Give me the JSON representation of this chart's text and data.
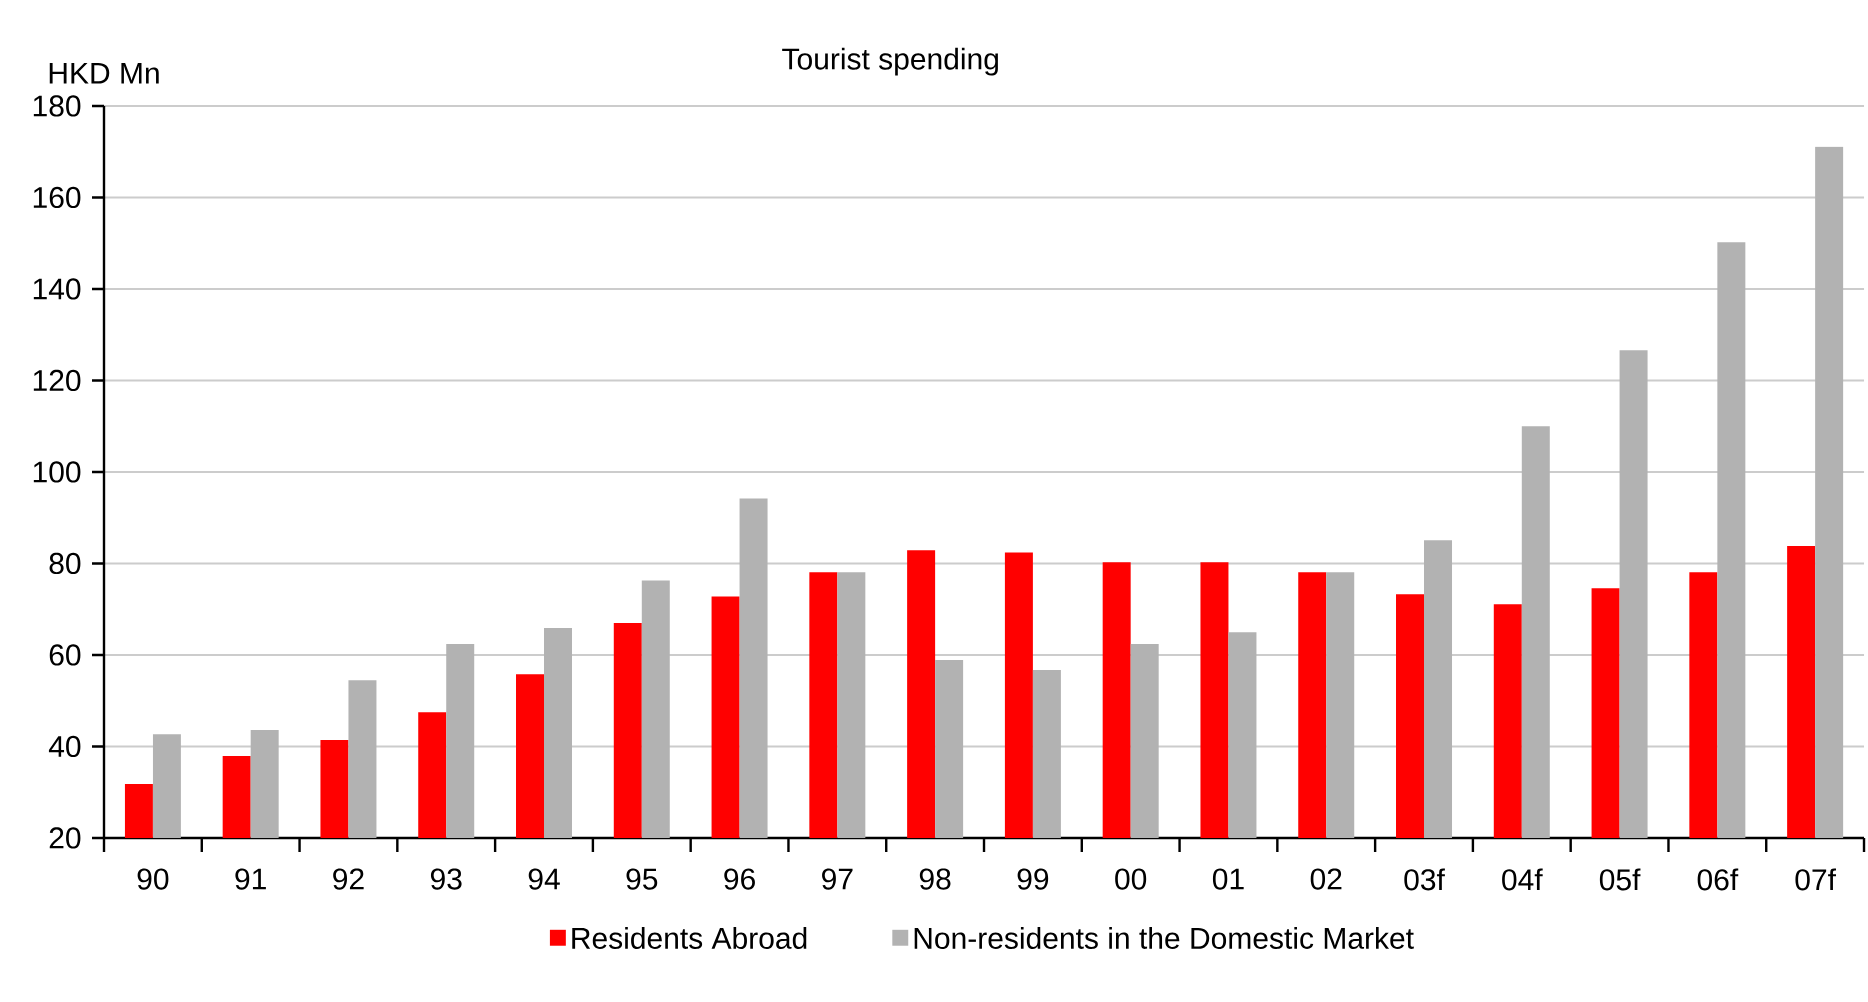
{
  "chart_data": {
    "type": "bar",
    "title": "Tourist spending",
    "ylabel": "HKD Mn",
    "categories": [
      "90",
      "91",
      "92",
      "93",
      "94",
      "95",
      "96",
      "97",
      "98",
      "99",
      "00",
      "01",
      "02",
      "03f",
      "04f",
      "05f",
      "06f",
      "07f"
    ],
    "series": [
      {
        "name": "Residents Abroad",
        "color": "#ff0000",
        "values": [
          31.8,
          37.9,
          41.4,
          47.5,
          55.8,
          67,
          72.8,
          78.1,
          82.9,
          82.4,
          80.3,
          80.3,
          78.1,
          73.3,
          71.1,
          74.6,
          78.1,
          83.8
        ]
      },
      {
        "name": "Non-residents in the Domestic Market",
        "color": "#b2b2b2",
        "values": [
          42.7,
          43.6,
          54.5,
          62.4,
          65.9,
          76.3,
          94.2,
          78.1,
          58.9,
          56.7,
          62.4,
          65,
          78.1,
          85.1,
          110,
          126.6,
          150.2,
          171.1
        ]
      }
    ],
    "ylim": [
      20,
      180
    ],
    "yticks": [
      20,
      40,
      60,
      80,
      100,
      120,
      140,
      160,
      180
    ],
    "grid": "y",
    "legend": "bottom"
  }
}
